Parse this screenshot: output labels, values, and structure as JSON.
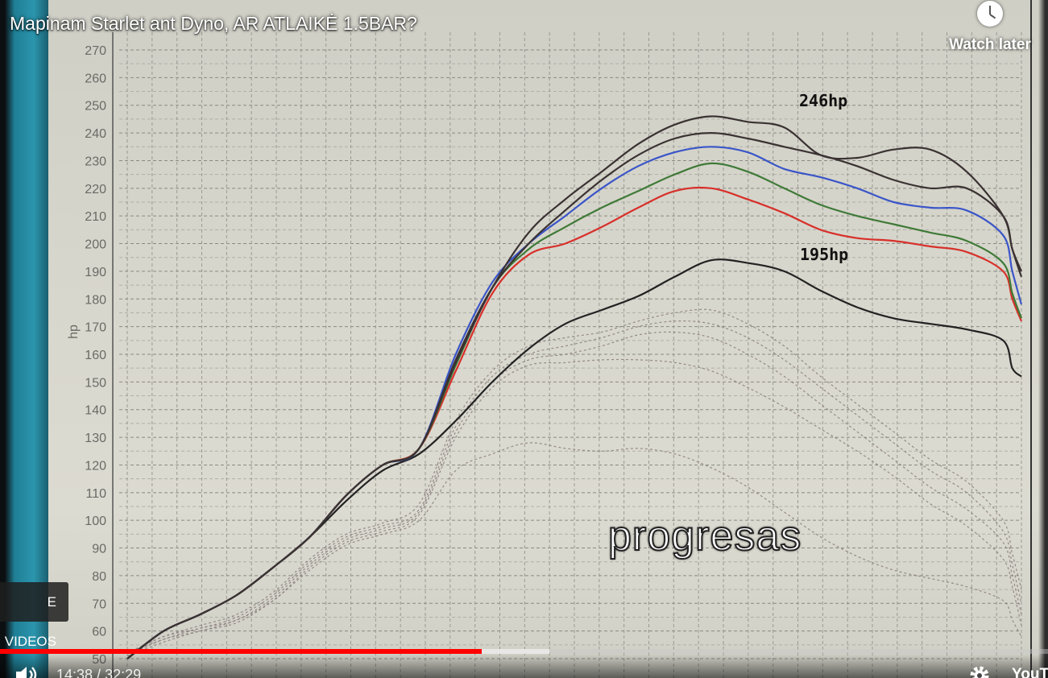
{
  "video": {
    "title": "Mapinam Starlet ant Dyno, AR ATLAIKĖ 1.5BAR?",
    "watch_later_label": "Watch later",
    "more_videos_label": "E VIDEOS",
    "overlay_caption": "progresas",
    "time_current": "14:38",
    "time_separator": " / ",
    "time_total": "32:29",
    "played_fraction": 0.46,
    "buffered_fraction": 0.524,
    "brand_fragment": "YouT"
  },
  "colors": {
    "progress_played": "#ff0000",
    "series_black": "#222222",
    "series_red": "#d8302a",
    "series_green": "#3f7a37",
    "series_blue": "#3a55c8",
    "series_dark": "#3a3232"
  },
  "chart_data": {
    "type": "line",
    "ylabel": "hp",
    "ylim": [
      50,
      270
    ],
    "yticks": [
      "270",
      "260",
      "250",
      "240",
      "230",
      "220",
      "210",
      "200",
      "190",
      "180",
      "170",
      "160",
      "150",
      "140",
      "130",
      "120",
      "110",
      "100",
      "90",
      "80",
      "70",
      "60",
      "50"
    ],
    "annotations": [
      "246hp",
      "195hp"
    ],
    "x": [
      0,
      4,
      8,
      12,
      16,
      20,
      24,
      28,
      32,
      36,
      40,
      44,
      48,
      52,
      56,
      60,
      64,
      68,
      72,
      76,
      80,
      84,
      88,
      92,
      96,
      97,
      98
    ],
    "series": [
      {
        "color": "#222222",
        "values": [
          50,
          60,
          66,
          73,
          83,
          94,
          107,
          118,
          124,
          136,
          150,
          162,
          171,
          176,
          181,
          188,
          194,
          193,
          190,
          183,
          177,
          173,
          171,
          169,
          165,
          155,
          152
        ]
      },
      {
        "color": "#d8302a",
        "values": [
          50,
          60,
          66,
          73,
          83,
          94,
          109,
          120,
          126,
          154,
          182,
          196,
          200,
          206,
          213,
          219,
          220,
          216,
          211,
          205,
          202,
          201,
          199,
          197,
          190,
          180,
          172
        ]
      },
      {
        "color": "#3f7a37",
        "values": [
          50,
          60,
          66,
          73,
          83,
          94,
          109,
          120,
          126,
          156,
          184,
          198,
          206,
          213,
          219,
          225,
          229,
          226,
          220,
          214,
          210,
          207,
          204,
          201,
          193,
          182,
          173
        ]
      },
      {
        "color": "#3a55c8",
        "values": [
          50,
          60,
          66,
          73,
          83,
          94,
          109,
          120,
          126,
          160,
          186,
          200,
          210,
          220,
          228,
          233,
          235,
          233,
          227,
          224,
          220,
          215,
          213,
          212,
          203,
          190,
          178
        ]
      },
      {
        "color": "#3a3232",
        "values": [
          50,
          60,
          66,
          73,
          83,
          94,
          109,
          120,
          126,
          158,
          184,
          200,
          212,
          223,
          232,
          238,
          240,
          238,
          235,
          232,
          228,
          223,
          220,
          220,
          210,
          198,
          188
        ]
      },
      {
        "color": "#3a3232",
        "values": [
          50,
          60,
          66,
          73,
          83,
          94,
          109,
          120,
          126,
          157,
          184,
          204,
          216,
          226,
          236,
          243,
          246,
          244,
          242,
          232,
          231,
          234,
          234,
          226,
          210,
          198,
          190
        ]
      }
    ],
    "dashed_series": [
      {
        "values": [
          52,
          58,
          62,
          66,
          74,
          86,
          95,
          99,
          106,
          136,
          154,
          163,
          166,
          168,
          172,
          175,
          176,
          171,
          163,
          152,
          142,
          132,
          122,
          114,
          100,
          88,
          75
        ]
      },
      {
        "values": [
          52,
          58,
          61,
          65,
          73,
          85,
          94,
          98,
          104,
          134,
          152,
          160,
          163,
          166,
          170,
          172,
          171,
          166,
          158,
          148,
          138,
          128,
          118,
          110,
          96,
          84,
          70
        ]
      },
      {
        "values": [
          52,
          57,
          61,
          64,
          72,
          84,
          93,
          97,
          103,
          132,
          150,
          158,
          160,
          163,
          167,
          168,
          166,
          160,
          152,
          142,
          132,
          122,
          112,
          104,
          92,
          80,
          66
        ]
      },
      {
        "values": [
          51,
          57,
          60,
          64,
          71,
          83,
          92,
          96,
          102,
          130,
          148,
          156,
          157,
          158,
          158,
          157,
          154,
          148,
          141,
          133,
          125,
          116,
          106,
          98,
          86,
          76,
          62
        ]
      },
      {
        "values": [
          51,
          56,
          60,
          63,
          71,
          82,
          91,
          95,
          100,
          118,
          124,
          128,
          126,
          125,
          126,
          124,
          119,
          112,
          103,
          94,
          87,
          82,
          79,
          76,
          71,
          64,
          58
        ]
      }
    ]
  }
}
